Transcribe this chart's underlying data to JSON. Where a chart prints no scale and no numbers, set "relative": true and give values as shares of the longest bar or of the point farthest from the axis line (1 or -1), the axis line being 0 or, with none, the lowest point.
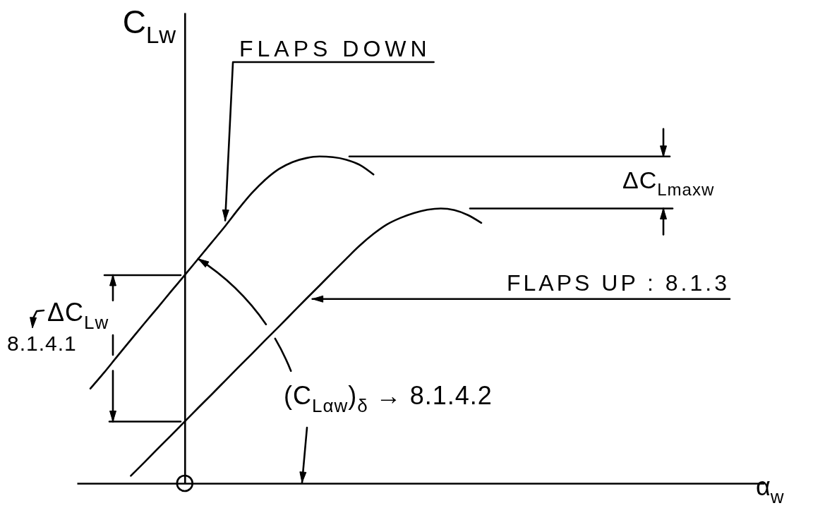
{
  "chart_data": {
    "type": "line",
    "relative": true,
    "xlabel": "α$_{w}$",
    "ylabel": "C$_{Lw}$",
    "categories": [
      null,
      null,
      null,
      null,
      null,
      null,
      null,
      null,
      null,
      null,
      null,
      null,
      null,
      null,
      null,
      null,
      null,
      null,
      null,
      null,
      null,
      null,
      null,
      null,
      null,
      null,
      null,
      null,
      null,
      null,
      null,
      null,
      null,
      null,
      null,
      null,
      null,
      null,
      null,
      null,
      null,
      null,
      null,
      null,
      null,
      null,
      null,
      null,
      null,
      null,
      null,
      null
    ],
    "series": [
      {
        "name": "FLAPS DOWN",
        "color": "#000000",
        "values": [
          null,
          0.29,
          0.338,
          0.389,
          0.439,
          0.489,
          0.538,
          0.588,
          0.637,
          0.687,
          0.737,
          0.787,
          0.84,
          0.889,
          0.93,
          0.962,
          0.983,
          0.995,
          1.0,
          0.998,
          0.99,
          0.974,
          0.945,
          null,
          null,
          null,
          null,
          null,
          null,
          null,
          null,
          null,
          null,
          null,
          null,
          null,
          null,
          null,
          null,
          null,
          null,
          null,
          null,
          null,
          null,
          null,
          null,
          null,
          null,
          null,
          null,
          null
        ]
      },
      {
        "name": "FLAPS UP : 8.1.3",
        "color": "#000000",
        "values": [
          null,
          null,
          null,
          null,
          0.023,
          0.064,
          0.106,
          0.147,
          0.189,
          0.231,
          0.272,
          0.314,
          0.356,
          0.397,
          0.439,
          0.48,
          0.522,
          0.564,
          0.605,
          0.647,
          0.688,
          0.728,
          0.763,
          0.792,
          0.812,
          0.827,
          0.837,
          0.841,
          0.836,
          0.821,
          0.797,
          null,
          null,
          null,
          null,
          null,
          null,
          null,
          null,
          null,
          null,
          null,
          null,
          null,
          null,
          null,
          null,
          null,
          null,
          null,
          null,
          null
        ]
      }
    ],
    "ref_lines": [
      {
        "axis": "y",
        "value": 1.0
      },
      {
        "axis": "y",
        "value": 0.841
      },
      {
        "axis": "y",
        "value": 0.637
      },
      {
        "axis": "y",
        "value": 0.189
      }
    ],
    "annotations": [
      "ΔC$_{Lmaxw}$",
      "ΔC$_{Lw}$",
      "8.1.4.1",
      "(C$_{Lαw}$)$_{δ}$ → 8.1.4.2"
    ]
  }
}
